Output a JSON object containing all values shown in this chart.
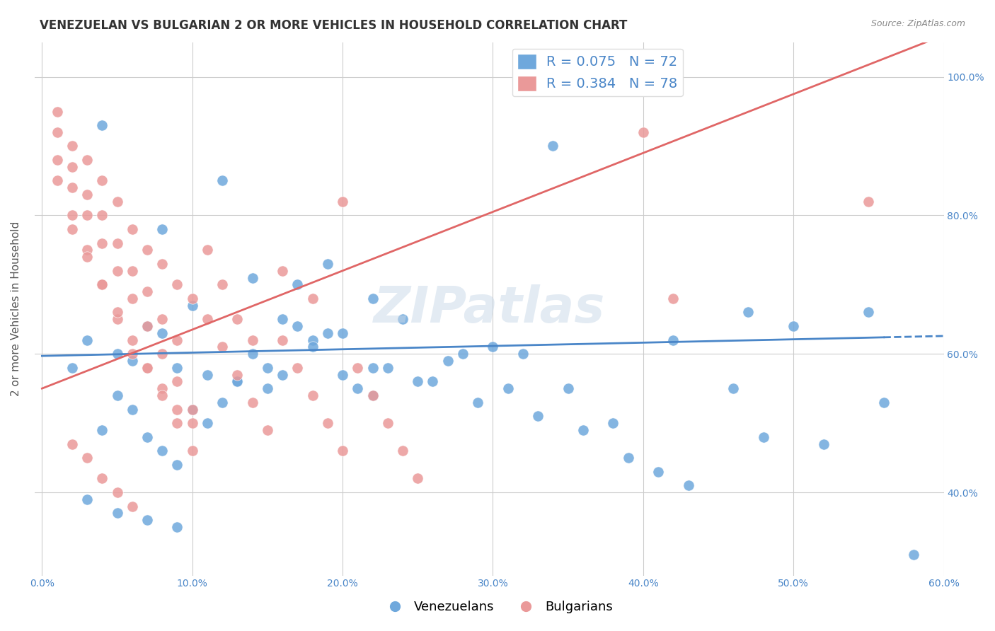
{
  "title": "VENEZUELAN VS BULGARIAN 2 OR MORE VEHICLES IN HOUSEHOLD CORRELATION CHART",
  "source": "Source: ZipAtlas.com",
  "ylabel": "2 or more Vehicles in Household",
  "x_tick_labels": [
    "0.0%",
    "10.0%",
    "20.0%",
    "30.0%",
    "40.0%",
    "50.0%",
    "60.0%"
  ],
  "y_tick_labels": [
    "40.0%",
    "60.0%",
    "80.0%",
    "100.0%"
  ],
  "xlim": [
    0.0,
    0.6
  ],
  "ylim": [
    0.28,
    1.05
  ],
  "blue_color": "#6fa8dc",
  "pink_color": "#ea9999",
  "blue_line_color": "#4a86c8",
  "pink_line_color": "#e06666",
  "R_blue": 0.075,
  "N_blue": 72,
  "R_pink": 0.384,
  "N_pink": 78,
  "blue_scatter_x": [
    0.04,
    0.12,
    0.08,
    0.17,
    0.24,
    0.28,
    0.15,
    0.22,
    0.19,
    0.03,
    0.05,
    0.07,
    0.09,
    0.11,
    0.13,
    0.06,
    0.08,
    0.1,
    0.14,
    0.16,
    0.18,
    0.2,
    0.22,
    0.26,
    0.3,
    0.32,
    0.35,
    0.38,
    0.42,
    0.5,
    0.55,
    0.02,
    0.04,
    0.05,
    0.06,
    0.07,
    0.08,
    0.09,
    0.1,
    0.11,
    0.12,
    0.13,
    0.14,
    0.15,
    0.16,
    0.17,
    0.18,
    0.19,
    0.2,
    0.21,
    0.22,
    0.23,
    0.25,
    0.27,
    0.29,
    0.31,
    0.33,
    0.36,
    0.39,
    0.41,
    0.43,
    0.46,
    0.48,
    0.52,
    0.56,
    0.58,
    0.03,
    0.05,
    0.07,
    0.09,
    0.34,
    0.47
  ],
  "blue_scatter_y": [
    0.93,
    0.85,
    0.78,
    0.7,
    0.65,
    0.6,
    0.55,
    0.68,
    0.73,
    0.62,
    0.6,
    0.64,
    0.58,
    0.57,
    0.56,
    0.59,
    0.63,
    0.67,
    0.71,
    0.65,
    0.62,
    0.63,
    0.58,
    0.56,
    0.61,
    0.6,
    0.55,
    0.5,
    0.62,
    0.64,
    0.66,
    0.58,
    0.49,
    0.54,
    0.52,
    0.48,
    0.46,
    0.44,
    0.52,
    0.5,
    0.53,
    0.56,
    0.6,
    0.58,
    0.57,
    0.64,
    0.61,
    0.63,
    0.57,
    0.55,
    0.54,
    0.58,
    0.56,
    0.59,
    0.53,
    0.55,
    0.51,
    0.49,
    0.45,
    0.43,
    0.41,
    0.55,
    0.48,
    0.47,
    0.53,
    0.31,
    0.39,
    0.37,
    0.36,
    0.35,
    0.9,
    0.66
  ],
  "pink_scatter_x": [
    0.01,
    0.02,
    0.03,
    0.04,
    0.05,
    0.06,
    0.07,
    0.08,
    0.09,
    0.1,
    0.01,
    0.02,
    0.03,
    0.04,
    0.05,
    0.06,
    0.07,
    0.08,
    0.09,
    0.01,
    0.02,
    0.03,
    0.04,
    0.05,
    0.06,
    0.07,
    0.08,
    0.09,
    0.1,
    0.01,
    0.02,
    0.03,
    0.04,
    0.05,
    0.06,
    0.07,
    0.08,
    0.09,
    0.1,
    0.11,
    0.12,
    0.13,
    0.14,
    0.16,
    0.18,
    0.2,
    0.02,
    0.03,
    0.04,
    0.05,
    0.06,
    0.07,
    0.08,
    0.09,
    0.1,
    0.11,
    0.12,
    0.13,
    0.14,
    0.15,
    0.16,
    0.17,
    0.18,
    0.19,
    0.2,
    0.21,
    0.22,
    0.23,
    0.24,
    0.25,
    0.4,
    0.42,
    0.55,
    0.02,
    0.03,
    0.04,
    0.05,
    0.06
  ],
  "pink_scatter_y": [
    0.95,
    0.9,
    0.88,
    0.85,
    0.82,
    0.78,
    0.75,
    0.73,
    0.7,
    0.68,
    0.92,
    0.87,
    0.83,
    0.8,
    0.76,
    0.72,
    0.69,
    0.65,
    0.62,
    0.88,
    0.84,
    0.8,
    0.76,
    0.72,
    0.68,
    0.64,
    0.6,
    0.56,
    0.52,
    0.85,
    0.8,
    0.75,
    0.7,
    0.65,
    0.6,
    0.58,
    0.55,
    0.52,
    0.5,
    0.75,
    0.7,
    0.65,
    0.62,
    0.72,
    0.68,
    0.82,
    0.78,
    0.74,
    0.7,
    0.66,
    0.62,
    0.58,
    0.54,
    0.5,
    0.46,
    0.65,
    0.61,
    0.57,
    0.53,
    0.49,
    0.62,
    0.58,
    0.54,
    0.5,
    0.46,
    0.58,
    0.54,
    0.5,
    0.46,
    0.42,
    0.92,
    0.68,
    0.82,
    0.47,
    0.45,
    0.42,
    0.4,
    0.38
  ],
  "blue_line_y_intercept": 0.597,
  "blue_line_slope": 0.048,
  "blue_line_dash_start": 0.56,
  "pink_line_y_intercept": 0.55,
  "pink_line_slope": 0.85,
  "title_fontsize": 12,
  "axis_label_fontsize": 11,
  "tick_fontsize": 10
}
